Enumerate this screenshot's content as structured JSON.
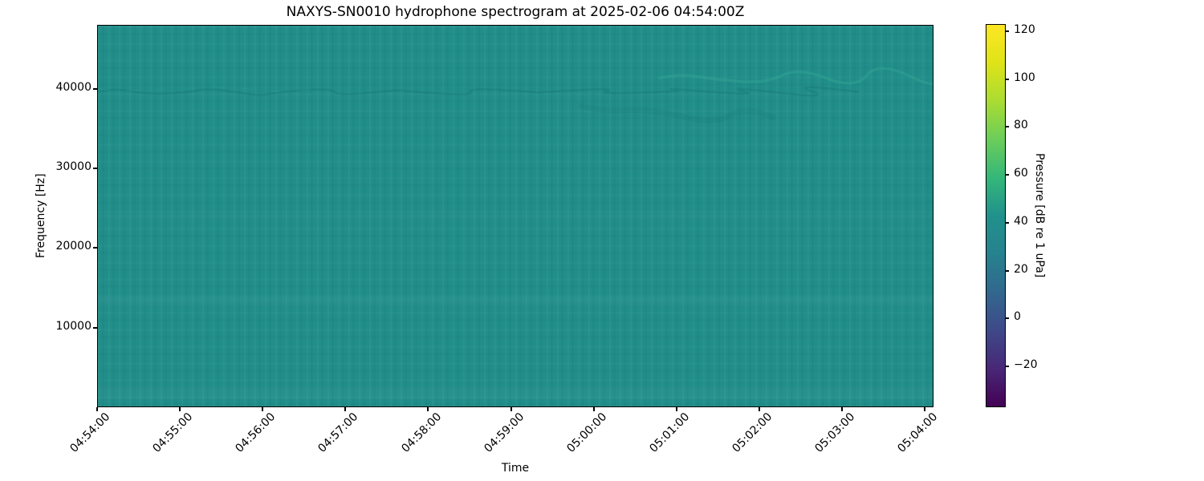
{
  "chart_data": {
    "type": "heatmap",
    "subtype": "spectrogram",
    "title": "NAXYS-SN0010 hydrophone spectrogram at 2025-02-06 04:54:00Z",
    "xlabel": "Time",
    "ylabel": "Frequency [Hz]",
    "x_tick_labels": [
      "04:54:00",
      "04:55:00",
      "04:56:00",
      "04:57:00",
      "04:58:00",
      "04:59:00",
      "05:00:00",
      "05:01:00",
      "05:02:00",
      "05:03:00",
      "05:04:00"
    ],
    "y_tick_values": [
      10000,
      20000,
      30000,
      40000
    ],
    "y_range_hz": [
      0,
      48000
    ],
    "grid": false,
    "legend": "none",
    "colormap": "viridis",
    "colorbar": {
      "label": "Pressure [dB re 1 uPa]",
      "tick_values": [
        120,
        100,
        80,
        60,
        40,
        20,
        0,
        -20
      ],
      "value_range_estimate_db": [
        -37,
        123
      ],
      "position": "right"
    },
    "data_summary": {
      "background_level_db_approx": 50,
      "description": "Near-uniform broadband level of roughly 50 dB re 1 uPa across 0-48000 Hz for the entire 04:54:00-05:04:00 window; faint slightly darker wavy band near 40000 Hz, faint lighter fluctuations near 42000 Hz after about 05:00:00, subtle vertical column noise, no strong transients."
    },
    "colors": {
      "background": "#ffffff",
      "plot_base": "#218e8a",
      "dark_band": "#15706d",
      "light_marks": "#38a794",
      "spine": "#000000",
      "viridis_stops": [
        [
          0.0,
          "#440154"
        ],
        [
          0.1,
          "#482878"
        ],
        [
          0.2,
          "#3e4989"
        ],
        [
          0.3,
          "#31688e"
        ],
        [
          0.4,
          "#26828e"
        ],
        [
          0.5,
          "#21918c"
        ],
        [
          0.6,
          "#35b779"
        ],
        [
          0.7,
          "#6bcd5a"
        ],
        [
          0.8,
          "#aadc32"
        ],
        [
          0.9,
          "#dfe318"
        ],
        [
          1.0,
          "#fde725"
        ]
      ]
    }
  }
}
